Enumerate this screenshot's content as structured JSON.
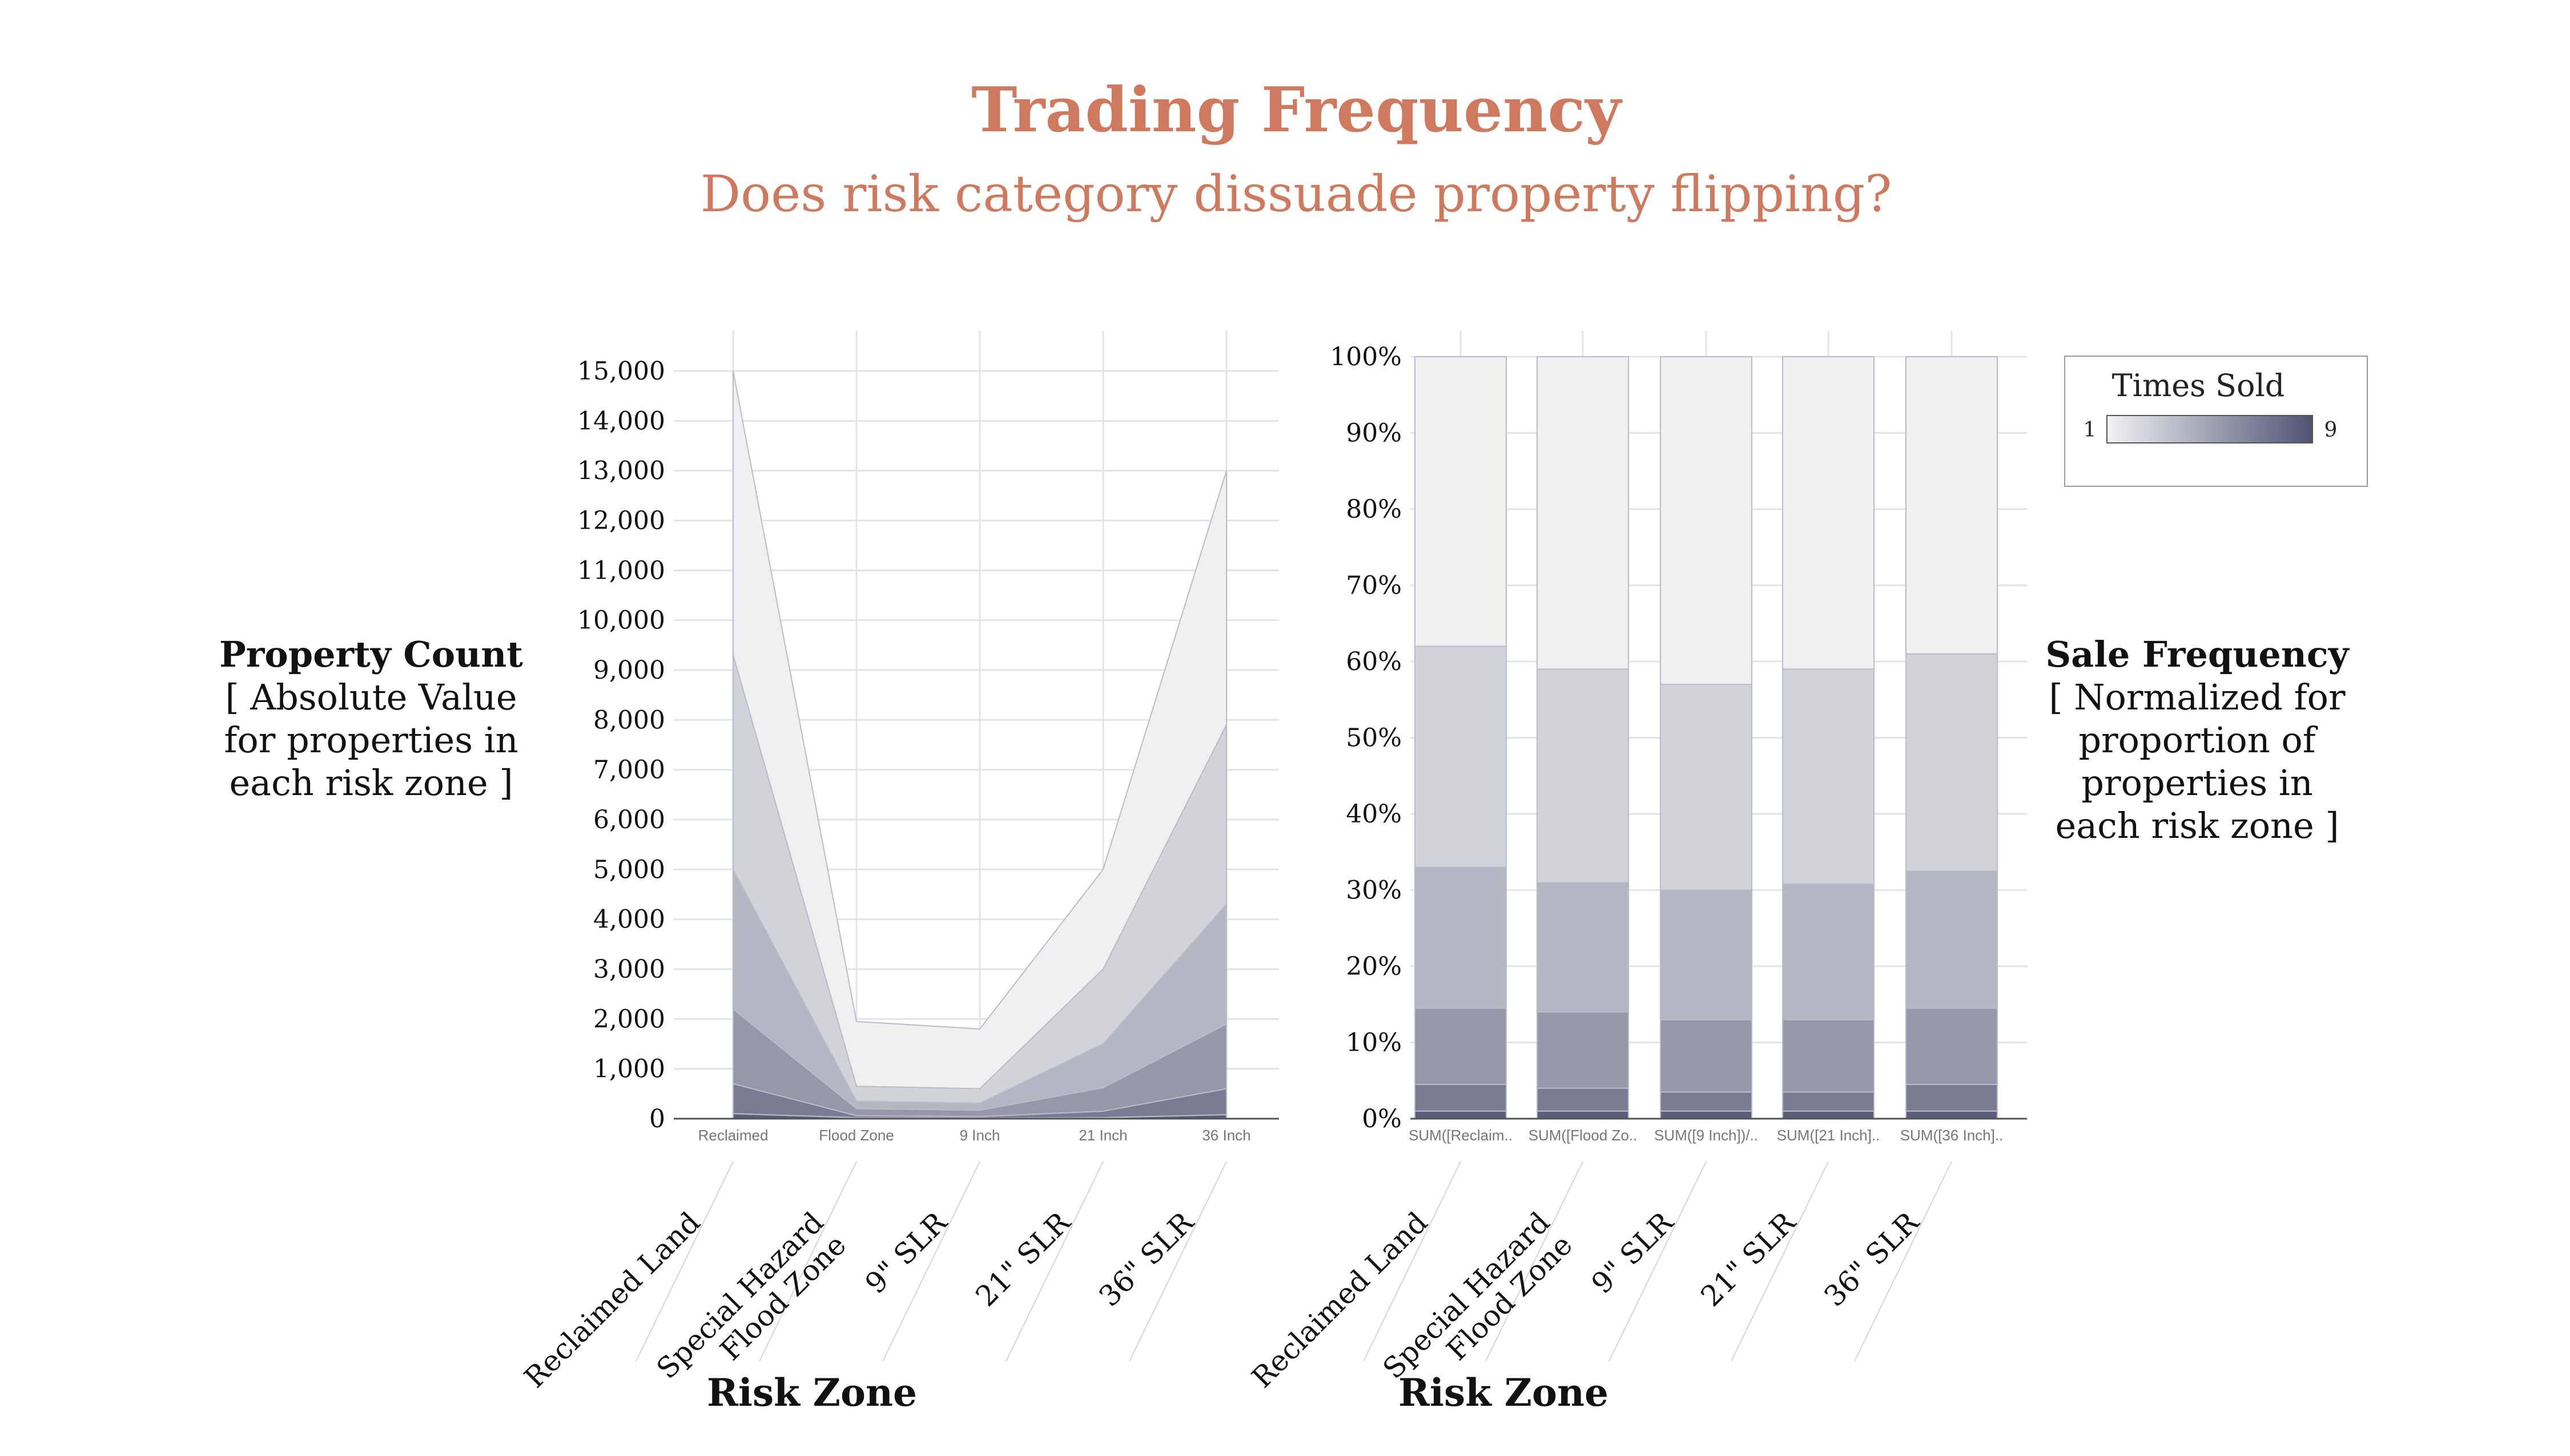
{
  "title": "Trading Frequency",
  "subtitle": "Does risk category dissuade property flipping?",
  "colors": {
    "accent": "#cf7a5e",
    "grid": "#e3e4ea",
    "band_light": "#f0f0f1",
    "band_dark": "#5a5e79",
    "legend_low": "#f2f2f4",
    "legend_high": "#4e5373"
  },
  "left_panel": {
    "ylabel_bold": "Property Count",
    "ylabel_lines": [
      "[ Absolute Value",
      "for properties in",
      "each risk zone ]"
    ],
    "xlabel": "Risk Zone"
  },
  "right_panel": {
    "ylabel_bold": "Sale Frequency",
    "ylabel_lines": [
      "[ Normalized for",
      "proportion of",
      "properties in",
      "each risk zone ]"
    ],
    "xlabel": "Risk Zone"
  },
  "legend": {
    "title": "Times Sold",
    "min_label": "1",
    "max_label": "9"
  },
  "chart_data": [
    {
      "type": "area",
      "stacked": true,
      "categories": [
        "Reclaimed",
        "Flood Zone",
        "9 Inch",
        "21 Inch",
        "36 Inch"
      ],
      "category_labels": [
        [
          "Reclaimed Land"
        ],
        [
          "Special Hazard",
          "Flood Zone"
        ],
        [
          "9\" SLR"
        ],
        [
          "21\" SLR"
        ],
        [
          "36\" SLR"
        ]
      ],
      "ylim": [
        0,
        15000
      ],
      "yticks": [
        "0",
        "1,000",
        "2,000",
        "3,000",
        "4,000",
        "5,000",
        "6,000",
        "7,000",
        "8,000",
        "9,000",
        "10,000",
        "11,000",
        "12,000",
        "13,000",
        "14,000",
        "15,000"
      ],
      "ytick_values": [
        0,
        1000,
        2000,
        3000,
        4000,
        5000,
        6000,
        7000,
        8000,
        9000,
        10000,
        11000,
        12000,
        13000,
        14000,
        15000
      ],
      "cumulative_boundaries": [
        [
          100,
          20,
          10,
          20,
          80
        ],
        [
          700,
          60,
          40,
          150,
          600
        ],
        [
          2200,
          200,
          170,
          620,
          1900
        ],
        [
          5000,
          350,
          310,
          1500,
          4300
        ],
        [
          9300,
          650,
          600,
          3000,
          7900
        ],
        [
          15000,
          1950,
          1800,
          5000,
          13000
        ]
      ],
      "grid": true
    },
    {
      "type": "bar",
      "stacked": true,
      "normalized": true,
      "categories": [
        "SUM([Reclaim..",
        "SUM([Flood Zo..",
        "SUM([9 Inch])/..",
        "SUM([21 Inch]..",
        "SUM([36 Inch].."
      ],
      "category_labels": [
        [
          "Reclaimed Land"
        ],
        [
          "Special Hazard",
          "Flood Zone"
        ],
        [
          "9\" SLR"
        ],
        [
          "21\" SLR"
        ],
        [
          "36\" SLR"
        ]
      ],
      "ylim": [
        0,
        100
      ],
      "yticks": [
        "0%",
        "10%",
        "20%",
        "30%",
        "40%",
        "50%",
        "60%",
        "70%",
        "80%",
        "90%",
        "100%"
      ],
      "ytick_values": [
        0,
        10,
        20,
        30,
        40,
        50,
        60,
        70,
        80,
        90,
        100
      ],
      "cumulative_boundaries": [
        [
          1,
          1,
          1,
          1,
          1
        ],
        [
          4.5,
          4,
          3.5,
          3.5,
          4.5
        ],
        [
          14.5,
          14,
          13,
          13,
          14.5
        ],
        [
          33,
          31,
          30,
          30.8,
          32.5
        ],
        [
          62,
          59,
          57,
          59,
          61
        ],
        [
          100,
          100,
          100,
          100,
          100
        ]
      ],
      "grid": true
    }
  ]
}
